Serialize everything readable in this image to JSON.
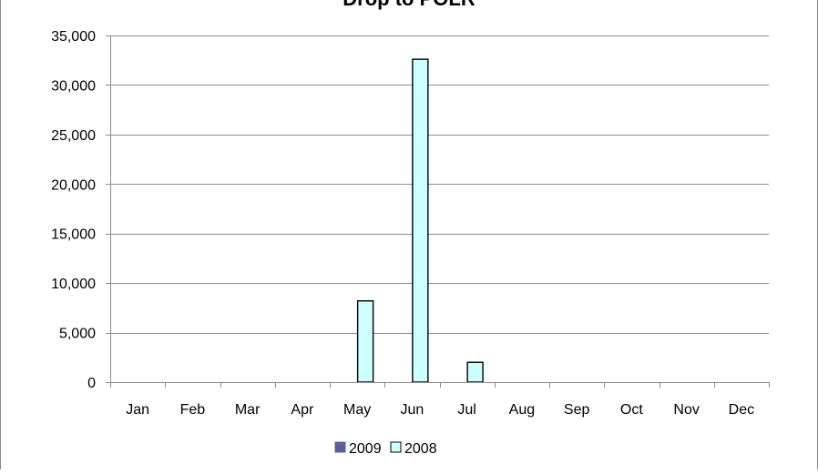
{
  "chart_data": {
    "type": "bar",
    "title": "Drop to POLR",
    "xlabel": "",
    "ylabel": "",
    "categories": [
      "Jan",
      "Feb",
      "Mar",
      "Apr",
      "May",
      "Jun",
      "Jul",
      "Aug",
      "Sep",
      "Oct",
      "Nov",
      "Dec"
    ],
    "series": [
      {
        "name": "2009",
        "color": "#5b5f99",
        "values": [
          0,
          0,
          0,
          0,
          0,
          0,
          0,
          0,
          0,
          0,
          0,
          0
        ]
      },
      {
        "name": "2008",
        "color": "#ccffff",
        "values": [
          0,
          0,
          0,
          0,
          8200,
          32600,
          2000,
          0,
          0,
          0,
          0,
          0
        ]
      }
    ],
    "ylim": [
      0,
      35000
    ],
    "yticks": [
      0,
      5000,
      10000,
      15000,
      20000,
      25000,
      30000,
      35000
    ],
    "ytick_labels": [
      "0",
      "5,000",
      "10,000",
      "15,000",
      "20,000",
      "25,000",
      "30,000",
      "35,000"
    ],
    "grid": true,
    "legend": "bottom"
  }
}
